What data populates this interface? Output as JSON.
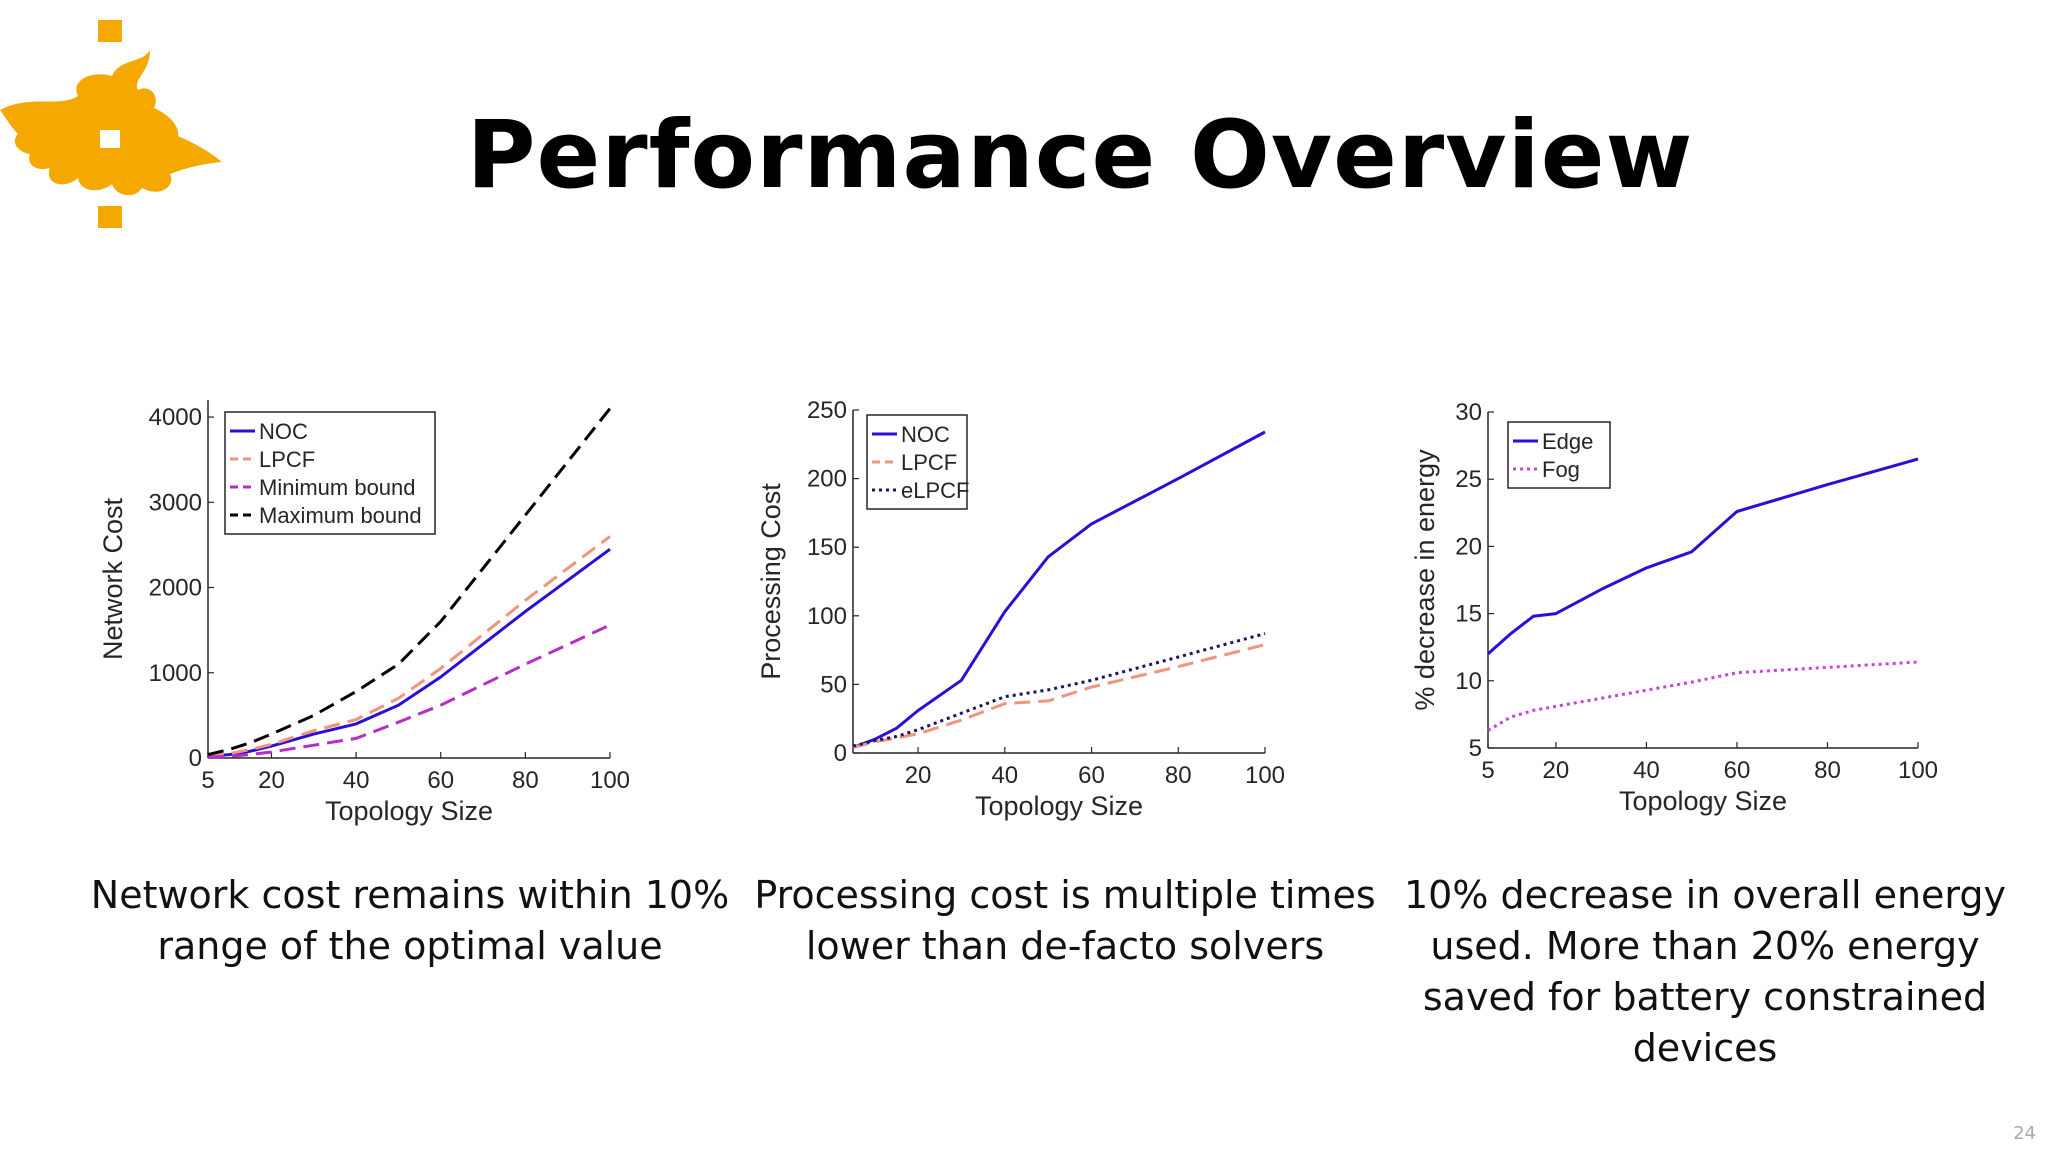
{
  "slide": {
    "title": "Performance Overview",
    "page_number": "24",
    "logo_icon": "university-flame-logo",
    "captions": [
      "Network cost remains within 10% range of the optimal value",
      "Processing cost is multiple times lower than de-facto solvers",
      "10% decrease in overall energy used. More than 20% energy saved for battery constrained devices"
    ]
  },
  "chart_data": [
    {
      "type": "line",
      "title": "",
      "xlabel": "Topology Size",
      "ylabel": "Network Cost",
      "xlim": [
        5,
        100
      ],
      "ylim": [
        0,
        4200
      ],
      "xticks": [
        5,
        20,
        40,
        60,
        80,
        100
      ],
      "yticks": [
        0,
        1000,
        2000,
        3000,
        4000
      ],
      "grid": false,
      "legend_position": "top-left",
      "series": [
        {
          "name": "NOC",
          "color": "#2b0fd6",
          "dash": "solid",
          "x": [
            5,
            10,
            15,
            20,
            30,
            40,
            50,
            60,
            80,
            100
          ],
          "y": [
            20,
            40,
            80,
            140,
            280,
            400,
            620,
            950,
            1720,
            2450
          ]
        },
        {
          "name": "LPCF",
          "color": "#f0947e",
          "dash": "dashed",
          "x": [
            5,
            10,
            15,
            20,
            30,
            40,
            50,
            60,
            80,
            100
          ],
          "y": [
            20,
            50,
            100,
            160,
            320,
            450,
            700,
            1050,
            1850,
            2600
          ]
        },
        {
          "name": "Minimum bound",
          "color": "#b42fc6",
          "dash": "dashed",
          "x": [
            5,
            10,
            15,
            20,
            30,
            40,
            50,
            60,
            80,
            100
          ],
          "y": [
            10,
            20,
            40,
            70,
            150,
            230,
            420,
            620,
            1100,
            1560
          ]
        },
        {
          "name": "Maximum bound",
          "color": "#000000",
          "dash": "dashed",
          "x": [
            5,
            10,
            15,
            20,
            30,
            40,
            50,
            60,
            80,
            100
          ],
          "y": [
            40,
            100,
            180,
            280,
            500,
            780,
            1100,
            1600,
            2850,
            4100
          ]
        }
      ]
    },
    {
      "type": "line",
      "title": "",
      "xlabel": "Topology Size",
      "ylabel": "Processing Cost",
      "xlim": [
        5,
        100
      ],
      "ylim": [
        0,
        250
      ],
      "xticks": [
        20,
        40,
        60,
        80,
        100
      ],
      "yticks": [
        0,
        50,
        100,
        150,
        200,
        250
      ],
      "grid": false,
      "legend_position": "top-left",
      "series": [
        {
          "name": "NOC",
          "color": "#2b0fd6",
          "dash": "solid",
          "x": [
            5,
            10,
            15,
            20,
            30,
            40,
            50,
            60,
            80,
            100
          ],
          "y": [
            4,
            10,
            18,
            31,
            53,
            103,
            143,
            167,
            200,
            234
          ]
        },
        {
          "name": "LPCF",
          "color": "#f0947e",
          "dash": "dashed",
          "x": [
            5,
            10,
            15,
            20,
            30,
            40,
            50,
            60,
            80,
            100
          ],
          "y": [
            4,
            8,
            11,
            14,
            24,
            36,
            38,
            48,
            63,
            79
          ]
        },
        {
          "name": "eLPCF",
          "color": "#1a1560",
          "dash": "dotted",
          "x": [
            5,
            10,
            15,
            20,
            30,
            40,
            50,
            60,
            80,
            100
          ],
          "y": [
            5,
            9,
            12,
            17,
            29,
            41,
            46,
            53,
            70,
            87
          ]
        }
      ]
    },
    {
      "type": "line",
      "title": "",
      "xlabel": "Topology Size",
      "ylabel": "% decrease in energy",
      "xlim": [
        5,
        100
      ],
      "ylim": [
        5,
        30
      ],
      "xticks": [
        5,
        20,
        40,
        60,
        80,
        100
      ],
      "yticks": [
        5,
        10,
        15,
        20,
        25,
        30
      ],
      "grid": false,
      "legend_position": "top-left",
      "series": [
        {
          "name": "Edge",
          "color": "#2b0fd6",
          "dash": "solid",
          "x": [
            5,
            10,
            15,
            20,
            30,
            40,
            50,
            60,
            80,
            100
          ],
          "y": [
            12,
            13.5,
            14.8,
            15,
            16.8,
            18.4,
            19.6,
            22.6,
            24.6,
            26.5
          ]
        },
        {
          "name": "Fog",
          "color": "#c445d8",
          "dash": "dotted",
          "x": [
            5,
            10,
            15,
            20,
            30,
            40,
            50,
            60,
            80,
            100
          ],
          "y": [
            6.3,
            7.3,
            7.8,
            8.1,
            8.7,
            9.3,
            9.9,
            10.6,
            11,
            11.4
          ]
        }
      ]
    }
  ]
}
